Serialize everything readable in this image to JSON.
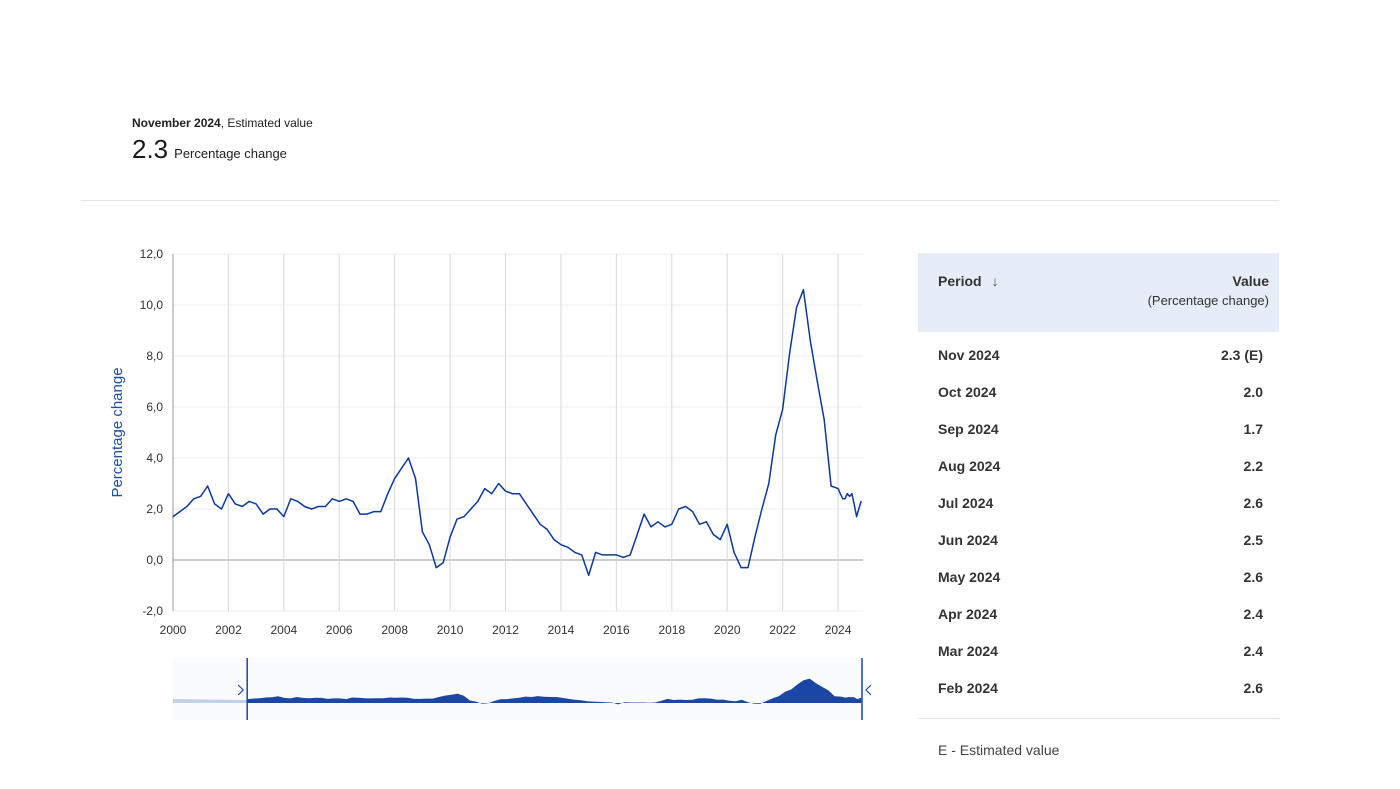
{
  "headline": {
    "period": "November 2024",
    "qualifier": ", Estimated value",
    "value": "2.3",
    "unit": "Percentage change"
  },
  "table": {
    "col_period": "Period",
    "sort_icon": "arrow-down-icon",
    "col_value": "Value",
    "col_value_sub": "(Percentage change)",
    "rows": [
      {
        "period": "Nov 2024",
        "value": "2.3 (E)"
      },
      {
        "period": "Oct 2024",
        "value": "2.0"
      },
      {
        "period": "Sep 2024",
        "value": "1.7"
      },
      {
        "period": "Aug 2024",
        "value": "2.2"
      },
      {
        "period": "Jul 2024",
        "value": "2.6"
      },
      {
        "period": "Jun 2024",
        "value": "2.5"
      },
      {
        "period": "May 2024",
        "value": "2.6"
      },
      {
        "period": "Apr 2024",
        "value": "2.4"
      },
      {
        "period": "Mar 2024",
        "value": "2.4"
      },
      {
        "period": "Feb 2024",
        "value": "2.6"
      }
    ],
    "note": "E - Estimated value"
  },
  "colors": {
    "line": "#0b3a9b",
    "navigator_fill": "#1a47a6",
    "navigator_fill_outside": "#c3d0ea",
    "grid": "#d9d9d9",
    "axis_title": "#1f4fa8",
    "table_header_bg": "#e6edf8"
  },
  "chart_data": {
    "type": "line",
    "ylabel": "Percentage change",
    "ylim": [
      -2,
      12
    ],
    "yticks": [
      "-2,0",
      "0,0",
      "2,0",
      "4,0",
      "6,0",
      "8,0",
      "10,0",
      "12,0"
    ],
    "ytick_values": [
      -2,
      0,
      2,
      4,
      6,
      8,
      10,
      12
    ],
    "xlim": [
      2000,
      2024.9
    ],
    "xticks": [
      "2000",
      "2002",
      "2004",
      "2006",
      "2008",
      "2010",
      "2012",
      "2014",
      "2016",
      "2018",
      "2020",
      "2022",
      "2024"
    ],
    "xtick_values": [
      2000,
      2002,
      2004,
      2006,
      2008,
      2010,
      2012,
      2014,
      2016,
      2018,
      2020,
      2022,
      2024
    ],
    "vertical_grid": true,
    "navigator": {
      "x_from": 1997,
      "x_range": [
        2000,
        2024.9
      ]
    },
    "series": [
      {
        "x": [
          2000.0,
          2000.25,
          2000.5,
          2000.75,
          2001.0,
          2001.25,
          2001.5,
          2001.75,
          2002.0,
          2002.25,
          2002.5,
          2002.75,
          2003.0,
          2003.25,
          2003.5,
          2003.75,
          2004.0,
          2004.25,
          2004.5,
          2004.75,
          2005.0,
          2005.25,
          2005.5,
          2005.75,
          2006.0,
          2006.25,
          2006.5,
          2006.75,
          2007.0,
          2007.25,
          2007.5,
          2007.75,
          2008.0,
          2008.25,
          2008.5,
          2008.75,
          2009.0,
          2009.25,
          2009.5,
          2009.75,
          2010.0,
          2010.25,
          2010.5,
          2010.75,
          2011.0,
          2011.25,
          2011.5,
          2011.75,
          2012.0,
          2012.25,
          2012.5,
          2012.75,
          2013.0,
          2013.25,
          2013.5,
          2013.75,
          2014.0,
          2014.25,
          2014.5,
          2014.75,
          2015.0,
          2015.25,
          2015.5,
          2015.75,
          2016.0,
          2016.25,
          2016.5,
          2016.75,
          2017.0,
          2017.25,
          2017.5,
          2017.75,
          2018.0,
          2018.25,
          2018.5,
          2018.75,
          2019.0,
          2019.25,
          2019.5,
          2019.75,
          2020.0,
          2020.25,
          2020.5,
          2020.75,
          2021.0,
          2021.25,
          2021.5,
          2021.75,
          2022.0,
          2022.25,
          2022.5,
          2022.75,
          2023.0,
          2023.25,
          2023.5,
          2023.75,
          2024.0,
          2024.08,
          2024.17,
          2024.25,
          2024.33,
          2024.42,
          2024.5,
          2024.58,
          2024.67,
          2024.75,
          2024.83
        ],
        "y": [
          1.7,
          1.9,
          2.1,
          2.4,
          2.5,
          2.9,
          2.2,
          2.0,
          2.6,
          2.2,
          2.1,
          2.3,
          2.2,
          1.8,
          2.0,
          2.0,
          1.7,
          2.4,
          2.3,
          2.1,
          2.0,
          2.1,
          2.1,
          2.4,
          2.3,
          2.4,
          2.3,
          1.8,
          1.8,
          1.9,
          1.9,
          2.6,
          3.2,
          3.6,
          4.0,
          3.2,
          1.1,
          0.6,
          -0.3,
          -0.1,
          0.9,
          1.6,
          1.7,
          2.0,
          2.3,
          2.8,
          2.6,
          3.0,
          2.7,
          2.6,
          2.6,
          2.2,
          1.8,
          1.4,
          1.2,
          0.8,
          0.6,
          0.5,
          0.3,
          0.2,
          -0.6,
          0.3,
          0.2,
          0.2,
          0.2,
          0.1,
          0.2,
          1.0,
          1.8,
          1.3,
          1.5,
          1.3,
          1.4,
          2.0,
          2.1,
          1.9,
          1.4,
          1.5,
          1.0,
          0.8,
          1.4,
          0.3,
          -0.3,
          -0.3,
          0.9,
          2.0,
          3.0,
          4.9,
          5.9,
          8.1,
          9.9,
          10.6,
          8.6,
          7.0,
          5.5,
          2.9,
          2.8,
          2.6,
          2.4,
          2.4,
          2.6,
          2.5,
          2.6,
          2.2,
          1.7,
          2.0,
          2.3
        ]
      }
    ]
  }
}
